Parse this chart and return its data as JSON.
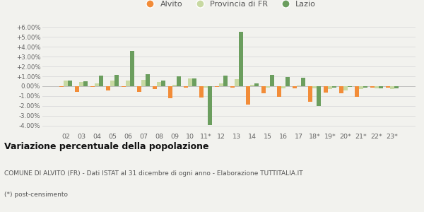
{
  "years": [
    "02",
    "03",
    "04",
    "05",
    "06",
    "07",
    "08",
    "09",
    "10",
    "11*",
    "12",
    "13",
    "14",
    "15",
    "16",
    "17",
    "18*",
    "19*",
    "20*",
    "21*",
    "22*",
    "23*"
  ],
  "alvito": [
    -0.1,
    -0.6,
    -0.05,
    -0.4,
    -0.05,
    -0.55,
    -0.3,
    -1.25,
    -0.15,
    -1.15,
    -0.1,
    -0.15,
    -1.9,
    -0.7,
    -1.1,
    -0.2,
    -1.55,
    -0.65,
    -0.75,
    -1.05,
    -0.15,
    -0.15
  ],
  "provincia": [
    0.55,
    0.4,
    0.3,
    0.55,
    0.55,
    0.65,
    0.45,
    0.15,
    0.8,
    -0.15,
    0.25,
    0.7,
    0.15,
    -0.15,
    -0.2,
    0.1,
    -0.2,
    -0.3,
    -0.4,
    -0.3,
    -0.2,
    -0.3
  ],
  "lazio": [
    0.6,
    0.5,
    1.1,
    1.15,
    3.55,
    1.2,
    0.6,
    1.0,
    0.8,
    -3.95,
    1.05,
    5.55,
    0.3,
    1.15,
    0.95,
    0.85,
    -2.05,
    -0.15,
    -0.1,
    -0.15,
    -0.2,
    -0.2
  ],
  "color_alvito": "#f28c38",
  "color_provincia": "#c8d9a2",
  "color_lazio": "#6b9e5e",
  "bg_color": "#f2f2ee",
  "grid_color": "#dddddd",
  "ylim_min": -4.6,
  "ylim_max": 6.6,
  "yticks": [
    -4.0,
    -3.0,
    -2.0,
    -1.0,
    0.0,
    1.0,
    2.0,
    3.0,
    4.0,
    5.0,
    6.0
  ],
  "title": "Variazione percentuale della popolazione",
  "subtitle": "COMUNE DI ALVITO (FR) - Dati ISTAT al 31 dicembre di ogni anno - Elaborazione TUTTITALIA.IT",
  "footnote": "(*) post-censimento",
  "bar_width": 0.28
}
